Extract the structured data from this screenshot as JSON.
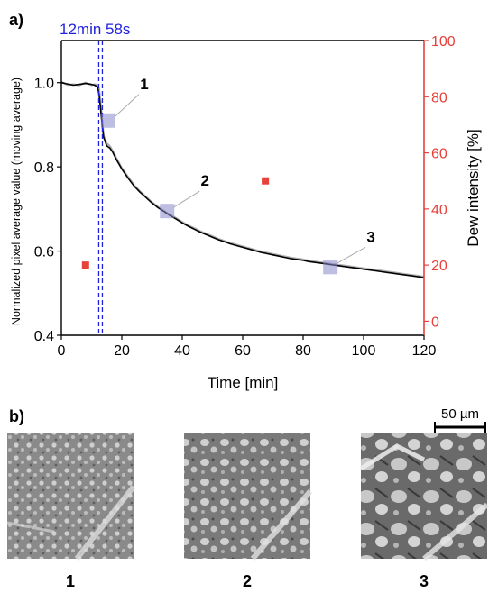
{
  "panel_a_label": "a)",
  "panel_b_label": "b)",
  "chart_data": {
    "type": "line",
    "xlabel": "Time [min]",
    "ylabel_left": "Normalized pixel average value (moving average)",
    "ylabel_right": "Dew intensity [%]",
    "xlim": [
      0,
      120
    ],
    "ylim_left": [
      0.4,
      1.1
    ],
    "ylim_right": [
      -5,
      100
    ],
    "x_ticks": [
      0,
      20,
      40,
      60,
      80,
      100,
      120
    ],
    "y_ticks_left": [
      0.4,
      0.6,
      0.8,
      1.0
    ],
    "y_ticks_left_labels": [
      "0.4",
      "0.6",
      "0.8",
      "1.0"
    ],
    "y_ticks_right": [
      0,
      20,
      40,
      60,
      80,
      100
    ],
    "right_axis_color": "#e8403a",
    "vline": {
      "x": 12.97,
      "label": "12min 58s",
      "color": "#2222dd"
    },
    "series": [
      {
        "axis": "left",
        "color": "#000000",
        "x": [
          0,
          2,
          4,
          6,
          8,
          10,
          11,
          12,
          12.5,
          13,
          13.5,
          14,
          15,
          16,
          17,
          18,
          20,
          22,
          24,
          26,
          28,
          30,
          32,
          34,
          36,
          38,
          40,
          42,
          44,
          46,
          48,
          50,
          52,
          54,
          56,
          58,
          60,
          62,
          64,
          66,
          68,
          70,
          72,
          74,
          76,
          78,
          80,
          82,
          84,
          86,
          88,
          90,
          92,
          94,
          96,
          98,
          100,
          102,
          104,
          106,
          108,
          110,
          112,
          114,
          116,
          118,
          120
        ],
        "y": [
          1.0,
          0.997,
          0.994,
          0.996,
          0.998,
          0.996,
          0.994,
          0.99,
          0.97,
          0.935,
          0.9,
          0.87,
          0.85,
          0.845,
          0.835,
          0.82,
          0.795,
          0.774,
          0.755,
          0.74,
          0.727,
          0.714,
          0.703,
          0.694,
          0.684,
          0.676,
          0.667,
          0.659,
          0.652,
          0.645,
          0.639,
          0.633,
          0.627,
          0.622,
          0.617,
          0.613,
          0.609,
          0.605,
          0.601,
          0.597,
          0.594,
          0.591,
          0.588,
          0.585,
          0.582,
          0.58,
          0.578,
          0.575,
          0.573,
          0.571,
          0.569,
          0.567,
          0.565,
          0.563,
          0.561,
          0.559,
          0.557,
          0.555,
          0.553,
          0.551,
          0.549,
          0.547,
          0.545,
          0.543,
          0.541,
          0.539,
          0.537
        ]
      },
      {
        "axis": "left",
        "color": "#b0b0b0",
        "x": [
          0,
          2,
          4,
          6,
          8,
          10,
          11,
          12,
          12.5,
          13,
          13.5,
          14,
          15,
          16,
          17,
          18,
          20,
          22,
          24,
          26,
          28,
          30,
          32,
          34,
          36,
          38,
          40,
          42,
          44,
          46,
          48,
          50,
          52,
          54,
          56,
          58,
          60,
          62,
          64,
          66,
          68,
          70,
          72,
          74,
          76,
          78,
          80,
          82,
          84,
          86,
          88,
          90,
          92,
          94,
          96,
          98,
          100,
          102,
          104,
          106,
          108,
          110,
          112,
          114,
          116,
          118,
          120
        ],
        "y": [
          1.002,
          0.995,
          0.996,
          0.994,
          1.0,
          0.994,
          0.996,
          0.995,
          0.985,
          0.95,
          0.91,
          0.875,
          0.856,
          0.85,
          0.838,
          0.824,
          0.797,
          0.777,
          0.757,
          0.742,
          0.729,
          0.716,
          0.705,
          0.695,
          0.686,
          0.678,
          0.669,
          0.661,
          0.654,
          0.647,
          0.641,
          0.635,
          0.629,
          0.624,
          0.619,
          0.615,
          0.611,
          0.607,
          0.603,
          0.599,
          0.596,
          0.593,
          0.59,
          0.587,
          0.584,
          0.582,
          0.58,
          0.577,
          0.575,
          0.573,
          0.571,
          0.569,
          0.567,
          0.565,
          0.563,
          0.561,
          0.559,
          0.557,
          0.555,
          0.553,
          0.551,
          0.549,
          0.547,
          0.545,
          0.543,
          0.541,
          0.539
        ]
      },
      {
        "axis": "right",
        "type": "scatter",
        "color": "#e8403a",
        "x": [
          8,
          67.5
        ],
        "y": [
          20,
          50
        ]
      }
    ],
    "highlights": [
      {
        "label": "1",
        "x": 15.5,
        "y": 0.91
      },
      {
        "label": "2",
        "x": 35,
        "y": 0.695
      },
      {
        "label": "3",
        "x": 89,
        "y": 0.562
      }
    ]
  },
  "micrographs": {
    "scale_bar": "50 µm",
    "labels": [
      "1",
      "2",
      "3"
    ]
  }
}
